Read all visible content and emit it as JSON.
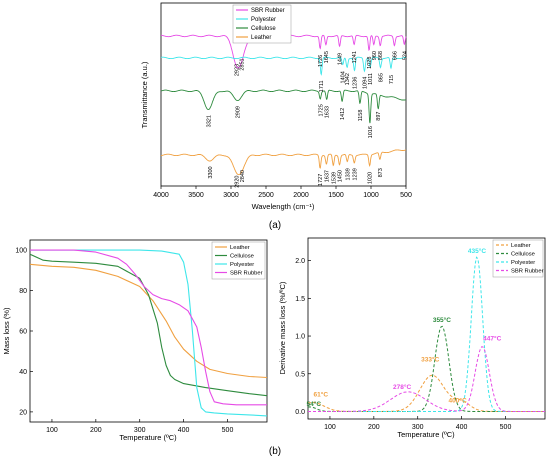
{
  "panel_labels": {
    "a": "(a)",
    "b": "(b)"
  },
  "colors": {
    "sbr": "#e64be6",
    "polyester": "#3ee6ea",
    "cellulose": "#2e8b3e",
    "leather": "#f0a040"
  },
  "chart_data": [
    {
      "type": "line",
      "ylabel": "Transmittance (a.u.)",
      "xlabel": "Wavelength (cm⁻¹)",
      "xlim": [
        4000,
        500
      ],
      "xticks": [
        4000,
        3500,
        3000,
        2500,
        2000,
        1500,
        1000,
        500
      ],
      "legend_position": "top-left",
      "series": [
        {
          "name": "SBR Rubber",
          "key": "sbr",
          "baseline": 0.82,
          "peaks": [
            2923,
            2851,
            1726,
            1645,
            1449,
            1241,
            1028,
            960,
            868,
            666,
            524
          ],
          "depths": [
            0.12,
            0.09,
            0.07,
            0.05,
            0.06,
            0.05,
            0.08,
            0.05,
            0.05,
            0.05,
            0.05
          ]
        },
        {
          "name": "Polyester",
          "key": "polyester",
          "baseline": 0.7,
          "peaks": [
            1711,
            1404,
            1342,
            1236,
            1094,
            1011,
            865,
            715
          ],
          "depths": [
            0.09,
            0.04,
            0.05,
            0.07,
            0.07,
            0.05,
            0.05,
            0.06
          ]
        },
        {
          "name": "Cellulose",
          "key": "cellulose",
          "baseline": 0.52,
          "peaks": [
            3321,
            2909,
            1725,
            1633,
            1412,
            1158,
            1016,
            897
          ],
          "depths": [
            0.1,
            0.05,
            0.04,
            0.05,
            0.06,
            0.07,
            0.16,
            0.08
          ]
        },
        {
          "name": "Leather",
          "key": "leather",
          "baseline": 0.17,
          "peaks": [
            3300,
            2920,
            2840,
            1727,
            1637,
            1539,
            1450,
            1339,
            1239,
            1020,
            873
          ],
          "depths": [
            0.03,
            0.08,
            0.05,
            0.07,
            0.05,
            0.06,
            0.05,
            0.04,
            0.04,
            0.06,
            0.04
          ]
        }
      ],
      "peak_labels": [
        {
          "series": "sbr",
          "labels": [
            "2923",
            "2851",
            "1726",
            "1645",
            "1449",
            "1241",
            "1028",
            "960",
            "868",
            "666",
            "524"
          ]
        },
        {
          "series": "polyester",
          "labels": [
            "1711",
            "1404",
            "1342",
            "1236",
            "1094",
            "1011",
            "865",
            "715"
          ]
        },
        {
          "series": "cellulose",
          "labels": [
            "3321",
            "2909",
            "1725",
            "1633",
            "1412",
            "1158",
            "1016",
            "897"
          ]
        },
        {
          "series": "leather",
          "labels": [
            "3300",
            "2920",
            "2840",
            "1727",
            "1637",
            "1539",
            "1450",
            "1339",
            "1239",
            "1020",
            "873"
          ]
        }
      ]
    },
    {
      "type": "line",
      "ylabel": "Mass loss (%)",
      "xlabel": "Temperature (ºC)",
      "xlim": [
        50,
        590
      ],
      "ylim": [
        15,
        105
      ],
      "xticks": [
        100,
        200,
        300,
        400,
        500
      ],
      "yticks": [
        20,
        40,
        60,
        80,
        100
      ],
      "legend_position": "top-right",
      "series": [
        {
          "name": "Leather",
          "key": "leather",
          "x": [
            50,
            100,
            150,
            200,
            250,
            300,
            330,
            360,
            380,
            400,
            430,
            460,
            500,
            550,
            590
          ],
          "y": [
            93,
            92,
            91.5,
            90,
            87,
            82,
            75,
            65,
            57,
            51,
            45,
            41,
            39,
            37.5,
            37
          ]
        },
        {
          "name": "Cellulose",
          "key": "cellulose",
          "x": [
            50,
            80,
            100,
            150,
            200,
            250,
            300,
            320,
            340,
            350,
            360,
            370,
            380,
            400,
            450,
            500,
            550,
            590
          ],
          "y": [
            98,
            95,
            94.5,
            94,
            93.5,
            92,
            86,
            78,
            64,
            52,
            43,
            38,
            36,
            34,
            32,
            30.5,
            29,
            28
          ]
        },
        {
          "name": "Polyester",
          "key": "polyester",
          "x": [
            50,
            100,
            150,
            200,
            250,
            300,
            350,
            390,
            400,
            410,
            420,
            430,
            440,
            450,
            470,
            500,
            550,
            590
          ],
          "y": [
            100,
            100,
            100,
            100,
            100,
            100,
            99.5,
            98,
            94,
            83,
            60,
            32,
            22,
            20,
            19.5,
            19,
            18.5,
            18
          ]
        },
        {
          "name": "SBR Rubber",
          "key": "sbr",
          "x": [
            50,
            100,
            150,
            200,
            250,
            270,
            290,
            310,
            330,
            350,
            370,
            390,
            410,
            430,
            440,
            450,
            460,
            470,
            490,
            520,
            560,
            590
          ],
          "y": [
            100,
            100,
            100,
            99,
            96,
            93,
            88,
            82,
            78,
            76,
            75,
            73,
            70,
            62,
            52,
            40,
            30,
            25,
            24,
            23.5,
            23.5,
            23.5
          ]
        }
      ]
    },
    {
      "type": "line",
      "ylabel": "Derivative mass loss (%/ºC)",
      "xlabel": "Temperature (ºC)",
      "xlim": [
        50,
        590
      ],
      "ylim": [
        -0.1,
        2.3
      ],
      "xticks": [
        100,
        200,
        300,
        400,
        500
      ],
      "yticks": [
        0.0,
        0.5,
        1.0,
        1.5,
        2.0
      ],
      "line_style": "dashed",
      "legend_position": "top-right",
      "series": [
        {
          "name": "Leather",
          "key": "leather",
          "peaks": [
            [
              61,
              0.12,
              25
            ],
            [
              333,
              0.48,
              28
            ],
            [
              400,
              0.12,
              20
            ]
          ]
        },
        {
          "name": "Cellulose",
          "key": "cellulose",
          "peaks": [
            [
              54,
              0.06,
              15
            ],
            [
              355,
              1.13,
              16
            ]
          ]
        },
        {
          "name": "Polyester",
          "key": "polyester",
          "peaks": [
            [
              435,
              2.05,
              13
            ]
          ]
        },
        {
          "name": "SBR Rubber",
          "key": "sbr",
          "peaks": [
            [
              278,
              0.26,
              40
            ],
            [
              447,
              0.86,
              16
            ]
          ]
        }
      ],
      "annotations": [
        {
          "text": "61°C",
          "key": "leather"
        },
        {
          "text": "54°C",
          "key": "cellulose"
        },
        {
          "text": "278°C",
          "key": "sbr"
        },
        {
          "text": "333°C",
          "key": "leather"
        },
        {
          "text": "355°C",
          "key": "cellulose"
        },
        {
          "text": "400°C",
          "key": "leather"
        },
        {
          "text": "435°C",
          "key": "polyester"
        },
        {
          "text": "447°C",
          "key": "sbr"
        }
      ]
    }
  ]
}
